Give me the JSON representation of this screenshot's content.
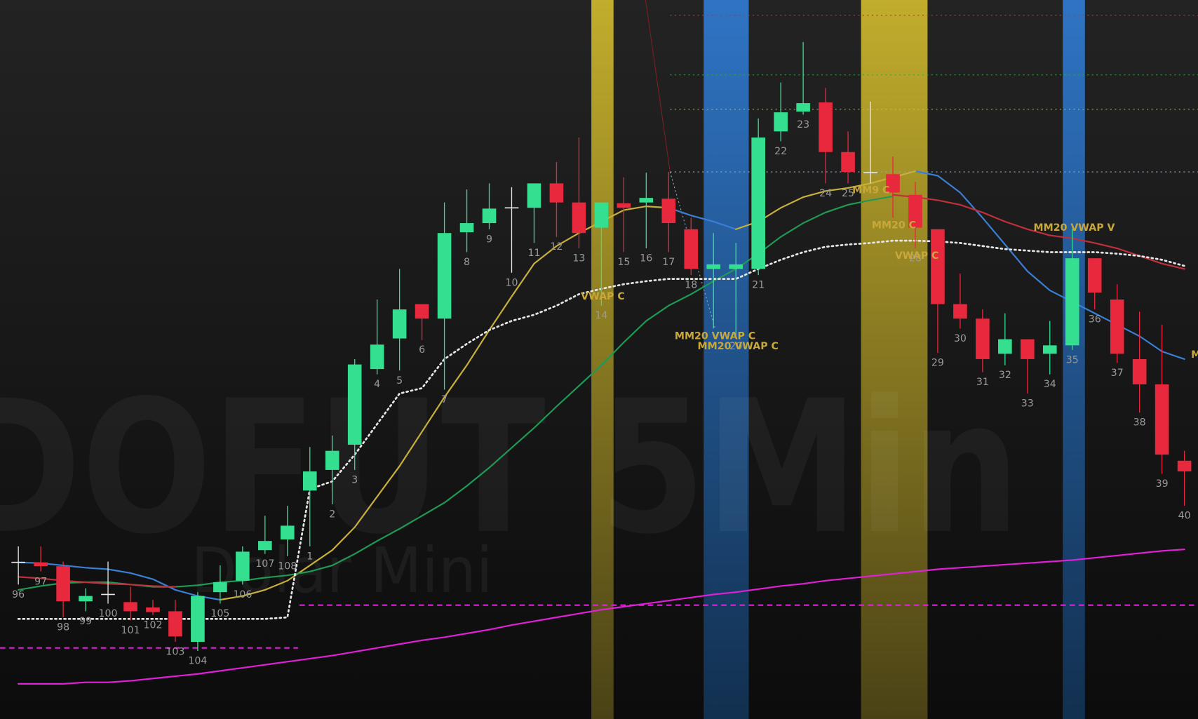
{
  "chart_data": {
    "type": "candlestick",
    "watermark": [
      "DOFUT 5Min",
      "Dolar Mini"
    ],
    "ylim": [
      59,
      1000
    ],
    "colors": {
      "up": "#34e08f",
      "down": "#e8283c",
      "doji": "#e8e8e8"
    },
    "categories": [
      "96",
      "97",
      "98",
      "99",
      "100",
      "101",
      "102",
      "103",
      "104",
      "105",
      "106",
      "107",
      "108",
      "1",
      "2",
      "3",
      "4",
      "5",
      "6",
      "7",
      "8",
      "9",
      "10",
      "11",
      "12",
      "13",
      "14",
      "15",
      "16",
      "17",
      "18",
      null,
      "20",
      "21",
      "22",
      "23",
      "24",
      "25",
      null,
      null,
      "28",
      "29",
      "30",
      "31",
      "32",
      "33",
      "34",
      "35",
      "36",
      "37",
      "38",
      "39",
      "40"
    ],
    "open": [
      264,
      264,
      259,
      213,
      222,
      212,
      205,
      200,
      160,
      225,
      240,
      280,
      294,
      358,
      385,
      418,
      517,
      557,
      602,
      583,
      696,
      708,
      728,
      728,
      760,
      735,
      702,
      734,
      735,
      740,
      700,
      648,
      648,
      648,
      828,
      854,
      866,
      801,
      774,
      772,
      745,
      700,
      602,
      583,
      537,
      556,
      537,
      548,
      662,
      608,
      530,
      497,
      397
    ],
    "high": [
      285,
      285,
      265,
      230,
      265,
      232,
      215,
      215,
      225,
      260,
      285,
      325,
      338,
      415,
      430,
      530,
      608,
      648,
      602,
      735,
      752,
      760,
      755,
      760,
      788,
      820,
      735,
      768,
      774,
      775,
      715,
      695,
      682,
      845,
      892,
      945,
      885,
      828,
      867,
      795,
      762,
      700,
      642,
      595,
      590,
      556,
      580,
      700,
      662,
      628,
      592,
      575,
      410
    ],
    "low": [
      235,
      252,
      192,
      200,
      210,
      188,
      195,
      160,
      148,
      210,
      235,
      275,
      272,
      285,
      340,
      385,
      510,
      515,
      555,
      490,
      670,
      700,
      643,
      682,
      690,
      675,
      600,
      670,
      675,
      670,
      640,
      570,
      560,
      640,
      815,
      850,
      760,
      760,
      760,
      715,
      675,
      538,
      570,
      513,
      522,
      485,
      510,
      542,
      595,
      525,
      460,
      380,
      338
    ],
    "close": [
      264,
      259,
      213,
      220,
      222,
      200,
      199,
      167,
      220,
      238,
      278,
      292,
      312,
      383,
      410,
      523,
      549,
      595,
      583,
      695,
      708,
      727,
      728,
      760,
      735,
      695,
      735,
      728,
      741,
      708,
      648,
      654,
      654,
      820,
      853,
      865,
      801,
      775,
      774,
      748,
      702,
      602,
      583,
      530,
      556,
      530,
      548,
      662,
      617,
      537,
      497,
      405,
      383
    ],
    "series": [
      {
        "color": "#3a7fd6",
        "style": "solid",
        "values": [
          264,
          263,
          260,
          257,
          255,
          250,
          242,
          228,
          220,
          215,
          null,
          null,
          null,
          null,
          null,
          null,
          null,
          null,
          null,
          null,
          null,
          null,
          null,
          null,
          null,
          null,
          null,
          null,
          null,
          728,
          718,
          710,
          700,
          null,
          null,
          null,
          null,
          null,
          null,
          null,
          776,
          770,
          748,
          715,
          680,
          645,
          620,
          605,
          590,
          575,
          560,
          540,
          530
        ]
      },
      {
        "color": "#c8b03a",
        "style": "solid",
        "values": [
          null,
          null,
          null,
          null,
          null,
          null,
          null,
          null,
          null,
          215,
          220,
          228,
          240,
          260,
          280,
          310,
          350,
          390,
          435,
          480,
          522,
          568,
          612,
          655,
          678,
          695,
          710,
          725,
          730,
          728,
          null,
          null,
          700,
          710,
          728,
          742,
          750,
          754,
          760,
          768,
          776,
          null,
          null,
          null,
          null,
          null,
          null,
          null,
          null,
          null,
          null,
          null,
          null
        ]
      },
      {
        "color": "#1f9a55",
        "style": "solid",
        "values": [
          228,
          233,
          237,
          238,
          238,
          235,
          232,
          232,
          234,
          238,
          240,
          244,
          247,
          252,
          260,
          275,
          292,
          308,
          325,
          342,
          364,
          388,
          414,
          440,
          468,
          495,
          522,
          552,
          580,
          600,
          615,
          632,
          648,
          668,
          690,
          708,
          722,
          732,
          738,
          743,
          null,
          null,
          null,
          null,
          null,
          null,
          null,
          null,
          null,
          null,
          null,
          null,
          null
        ]
      },
      {
        "color": "#c0303a",
        "style": "solid",
        "values": [
          245,
          243,
          240,
          238,
          236,
          235,
          233,
          232,
          null,
          null,
          null,
          null,
          null,
          null,
          null,
          null,
          null,
          null,
          null,
          null,
          null,
          null,
          null,
          null,
          null,
          null,
          null,
          null,
          null,
          null,
          null,
          null,
          null,
          null,
          null,
          null,
          null,
          null,
          null,
          745,
          742,
          738,
          732,
          722,
          710,
          700,
          692,
          688,
          682,
          675,
          665,
          655,
          648
        ]
      },
      {
        "color": "#e6e6e6",
        "style": "dotted",
        "values": [
          190,
          190,
          190,
          190,
          190,
          190,
          190,
          190,
          190,
          190,
          190,
          190,
          192,
          360,
          370,
          405,
          445,
          485,
          492,
          530,
          550,
          568,
          580,
          588,
          600,
          615,
          622,
          628,
          632,
          635,
          635,
          635,
          635,
          648,
          660,
          670,
          677,
          680,
          682,
          685,
          685,
          684,
          682,
          678,
          674,
          672,
          670,
          670,
          670,
          668,
          665,
          660,
          652
        ]
      },
      {
        "color": "#e020d8",
        "style": "solid",
        "values": [
          105,
          105,
          105,
          107,
          107,
          109,
          112,
          115,
          118,
          122,
          126,
          130,
          134,
          138,
          142,
          147,
          152,
          157,
          162,
          166,
          171,
          176,
          182,
          187,
          192,
          197,
          202,
          206,
          210,
          214,
          218,
          222,
          225,
          229,
          233,
          236,
          240,
          243,
          246,
          249,
          252,
          255,
          257,
          259,
          261,
          263,
          265,
          267,
          270,
          273,
          276,
          279,
          281
        ]
      }
    ],
    "levels": [
      {
        "value": 980,
        "color": "#c0303a",
        "style": "dotted"
      },
      {
        "value": 902,
        "color": "#2fa83a",
        "style": "dotted"
      },
      {
        "value": 857,
        "color": "#c8c030",
        "style": "dotted"
      },
      {
        "value": 775,
        "color": "#8aa6c8",
        "style": "dotted"
      },
      {
        "value": 208,
        "color": "#e020d8",
        "style": "dashed"
      },
      {
        "value": 152,
        "color": "#e020d8",
        "style": "dashed"
      }
    ],
    "annotations": [
      {
        "text": "MM9 C",
        "color": "#c8a83a"
      },
      {
        "text": "MM20 C",
        "color": "#c8a83a"
      },
      {
        "text": "VWAP C",
        "color": "#c8a83a"
      },
      {
        "text": "MM20 VWAP V",
        "color": "#c8a83a"
      },
      {
        "text": "VWAP C",
        "color": "#c8a83a"
      },
      {
        "text": "MM20 VWAP C",
        "color": "#c8a83a"
      },
      {
        "text": "MM20 VWAP C",
        "color": "#c8a83a"
      },
      {
        "text": "M",
        "color": "#c8a83a"
      }
    ]
  }
}
